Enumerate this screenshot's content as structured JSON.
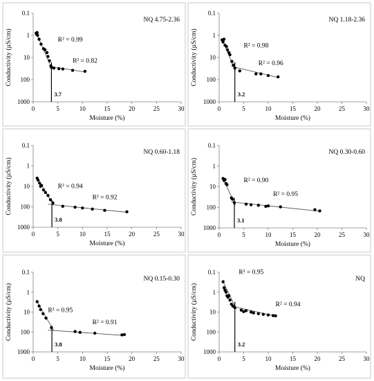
{
  "chart_data": [
    {
      "type": "scatter",
      "corner_label": "NQ 4.75-2.36",
      "xlabel": "Moisture (%)",
      "ylabel": "Conductivity (µS/cm)",
      "xlim": [
        0,
        30
      ],
      "xticks": [
        "0",
        "5",
        "10",
        "15",
        "20",
        "25",
        "30"
      ],
      "ylim": [
        0.1,
        1000
      ],
      "yscale": "log-reversed",
      "yticks": [
        "0.1",
        "1",
        "10",
        "100",
        "1000"
      ],
      "series": [
        {
          "points": [
            [
              0.6,
              0.8
            ],
            [
              0.7,
              0.9
            ],
            [
              0.8,
              0.75
            ],
            [
              0.9,
              1.0
            ],
            [
              1.2,
              1.5
            ],
            [
              1.6,
              2.5
            ],
            [
              2.1,
              4.0
            ],
            [
              2.4,
              4.5
            ],
            [
              2.8,
              6.0
            ],
            [
              3.0,
              9.0
            ],
            [
              3.3,
              14.0
            ],
            [
              3.6,
              24.0
            ],
            [
              3.7,
              28.0
            ],
            [
              4.2,
              30.0
            ],
            [
              5.2,
              32.0
            ],
            [
              6.0,
              33.0
            ],
            [
              8.0,
              38.0
            ],
            [
              10.5,
              42.0
            ]
          ],
          "fit_lines": [
            {
              "x": [
                0.6,
                3.8
              ],
              "y": [
                0.75,
                32.0
              ]
            },
            {
              "x": [
                3.2,
                10.5
              ],
              "y": [
                25.0,
                45.0
              ]
            }
          ]
        }
      ],
      "annotations": {
        "r2_first": "R² = 0.99",
        "r2_second": "R² = 0.82",
        "breakpoint": "3.7"
      },
      "breakpoint_x": 3.7,
      "r2_first_at": [
        5.0,
        1.9
      ],
      "r2_second_at": [
        8.0,
        17.0
      ],
      "grid": false
    },
    {
      "type": "scatter",
      "corner_label": "NQ 1.18-2.36",
      "xlabel": "Moisture (%)",
      "ylabel": "Conductivity (µS/cm)",
      "xlim": [
        0,
        30
      ],
      "xticks": [
        "0",
        "5",
        "10",
        "15",
        "20",
        "25",
        "30"
      ],
      "ylim": [
        0.1,
        1000
      ],
      "yscale": "log-reversed",
      "yticks": [
        "0.1",
        "1",
        "10",
        "100",
        "1000"
      ],
      "series": [
        {
          "points": [
            [
              0.6,
              1.6
            ],
            [
              0.8,
              2.0
            ],
            [
              1.0,
              1.5
            ],
            [
              1.2,
              2.8
            ],
            [
              1.5,
              3.2
            ],
            [
              1.7,
              4.5
            ],
            [
              2.0,
              6.0
            ],
            [
              2.2,
              7.5
            ],
            [
              2.6,
              15.0
            ],
            [
              2.9,
              22.0
            ],
            [
              3.2,
              30.0
            ],
            [
              4.2,
              40.0
            ],
            [
              7.5,
              55.0
            ],
            [
              8.5,
              55.0
            ],
            [
              10.0,
              65.0
            ],
            [
              12.0,
              75.0
            ]
          ],
          "fit_lines": [
            {
              "x": [
                0.6,
                3.3
              ],
              "y": [
                1.5,
                40.0
              ]
            },
            {
              "x": [
                2.5,
                12.0
              ],
              "y": [
                25.0,
                80.0
              ]
            }
          ]
        }
      ],
      "annotations": {
        "r2_first": "R² = 0.98",
        "r2_second": "R² = 0.96",
        "breakpoint": "3.2"
      },
      "breakpoint_x": 3.2,
      "r2_first_at": [
        5.0,
        3.5
      ],
      "r2_second_at": [
        8.0,
        22.0
      ],
      "grid": false
    },
    {
      "type": "scatter",
      "corner_label": "NQ 0.60-1.18",
      "xlabel": "Moisture (%)",
      "ylabel": "Conductivity (µS/cm)",
      "xlim": [
        0,
        30
      ],
      "xticks": [
        "0",
        "5",
        "10",
        "15",
        "20",
        "25",
        "30"
      ],
      "ylim": [
        0.1,
        1000
      ],
      "yscale": "log-reversed",
      "yticks": [
        "0.1",
        "1",
        "10",
        "100",
        "1000"
      ],
      "series": [
        {
          "points": [
            [
              0.8,
              4.0
            ],
            [
              1.0,
              5.0
            ],
            [
              1.3,
              7.0
            ],
            [
              1.5,
              10.0
            ],
            [
              1.7,
              9.0
            ],
            [
              2.1,
              15.0
            ],
            [
              2.5,
              20.0
            ],
            [
              3.0,
              28.0
            ],
            [
              3.5,
              45.0
            ],
            [
              4.0,
              65.0
            ],
            [
              6.0,
              95.0
            ],
            [
              8.5,
              105.0
            ],
            [
              10.0,
              115.0
            ],
            [
              12.0,
              130.0
            ],
            [
              14.5,
              150.0
            ],
            [
              19.0,
              175.0
            ]
          ],
          "fit_lines": [
            {
              "x": [
                0.8,
                4.2
              ],
              "y": [
                4.0,
                85.0
              ]
            },
            {
              "x": [
                3.0,
                19.0
              ],
              "y": [
                75.0,
                185.0
              ]
            }
          ]
        }
      ],
      "annotations": {
        "r2_first": "R² = 0.94",
        "r2_second": "R² = 0.92",
        "breakpoint": "3.8"
      },
      "breakpoint_x": 3.8,
      "r2_first_at": [
        5.0,
        12.0
      ],
      "r2_second_at": [
        12.0,
        42.0
      ],
      "grid": false
    },
    {
      "type": "scatter",
      "corner_label": "NQ 0.30-0.60",
      "xlabel": "Moisture (%)",
      "ylabel": "Conductivity (µS/cm)",
      "xlim": [
        0,
        30
      ],
      "xticks": [
        "0",
        "5",
        "10",
        "15",
        "20",
        "25",
        "30"
      ],
      "ylim": [
        0.1,
        1000
      ],
      "yscale": "log-reversed",
      "yticks": [
        "0.1",
        "1",
        "10",
        "100",
        "1000"
      ],
      "series": [
        {
          "points": [
            [
              0.8,
              4.0
            ],
            [
              1.0,
              5.0
            ],
            [
              1.2,
              4.5
            ],
            [
              1.4,
              7.0
            ],
            [
              1.6,
              8.0
            ],
            [
              2.5,
              35.0
            ],
            [
              2.7,
              40.0
            ],
            [
              3.1,
              60.0
            ],
            [
              5.5,
              70.0
            ],
            [
              6.5,
              75.0
            ],
            [
              8.0,
              80.0
            ],
            [
              9.5,
              90.0
            ],
            [
              10.0,
              85.0
            ],
            [
              12.5,
              95.0
            ],
            [
              19.5,
              130.0
            ],
            [
              20.5,
              150.0
            ]
          ],
          "fit_lines": [
            {
              "x": [
                0.8,
                3.3
              ],
              "y": [
                4.0,
                80.0
              ]
            },
            {
              "x": [
                2.5,
                20.5
              ],
              "y": [
                55.0,
                155.0
              ]
            }
          ]
        }
      ],
      "annotations": {
        "r2_first": "R² = 0.90",
        "r2_second": "R² = 0.95",
        "breakpoint": "3.1"
      },
      "breakpoint_x": 3.1,
      "r2_first_at": [
        5.0,
        6.0
      ],
      "r2_second_at": [
        11.0,
        28.0
      ],
      "grid": false
    },
    {
      "type": "scatter",
      "corner_label": "NQ 0.15-0.30",
      "xlabel": "Moisture (%)",
      "ylabel": "Conductivity (µS/cm)",
      "xlim": [
        0,
        30
      ],
      "xticks": [
        "0",
        "5",
        "10",
        "15",
        "20",
        "25",
        "30"
      ],
      "ylim": [
        0.1,
        1000
      ],
      "yscale": "log-reversed",
      "yticks": [
        "0.1",
        "1",
        "10",
        "100",
        "1000"
      ],
      "series": [
        {
          "points": [
            [
              0.8,
              3.0
            ],
            [
              1.2,
              5.0
            ],
            [
              1.5,
              7.5
            ],
            [
              2.0,
              12.0
            ],
            [
              2.6,
              20.0
            ],
            [
              3.7,
              60.0
            ],
            [
              8.5,
              95.0
            ],
            [
              9.5,
              105.0
            ],
            [
              12.5,
              115.0
            ],
            [
              18.0,
              140.0
            ],
            [
              18.5,
              135.0
            ]
          ],
          "fit_lines": [
            {
              "x": [
                0.8,
                4.2
              ],
              "y": [
                3.0,
                90.0
              ]
            },
            {
              "x": [
                3.0,
                18.5
              ],
              "y": [
                80.0,
                150.0
              ]
            }
          ]
        }
      ],
      "annotations": {
        "r2_first": "R² = 0.95",
        "r2_second": "R² = 0.91",
        "breakpoint": "3.8"
      },
      "breakpoint_x": 3.8,
      "r2_first_at": [
        3.0,
        10.0
      ],
      "r2_second_at": [
        12.0,
        40.0
      ],
      "grid": false
    },
    {
      "type": "scatter",
      "corner_label": "NQ",
      "xlabel": "Moisture (%)",
      "ylabel": "Conductivity (µS/cm)",
      "xlim": [
        0,
        30
      ],
      "xticks": [
        "0",
        "5",
        "10",
        "15",
        "20",
        "25",
        "30"
      ],
      "ylim": [
        0.1,
        1000
      ],
      "yscale": "log-reversed",
      "yticks": [
        "0.1",
        "1",
        "10",
        "100",
        "1000"
      ],
      "series": [
        {
          "points": [
            [
              0.8,
              0.3
            ],
            [
              1.0,
              0.6
            ],
            [
              1.2,
              0.8
            ],
            [
              1.4,
              1.0
            ],
            [
              1.6,
              1.5
            ],
            [
              1.8,
              1.8
            ],
            [
              2.0,
              1.5
            ],
            [
              2.2,
              2.5
            ],
            [
              2.5,
              4.0
            ],
            [
              2.8,
              5.0
            ],
            [
              3.2,
              6.0
            ],
            [
              4.5,
              8.0
            ],
            [
              5.0,
              9.5
            ],
            [
              5.5,
              8.5
            ],
            [
              6.5,
              10.0
            ],
            [
              7.0,
              11.0
            ],
            [
              8.0,
              12.0
            ],
            [
              9.0,
              13.0
            ],
            [
              10.0,
              14.0
            ],
            [
              11.0,
              15.0
            ],
            [
              11.5,
              15.5
            ]
          ],
          "fit_lines": [
            {
              "x": [
                0.8,
                3.5
              ],
              "y": [
                0.3,
                7.0
              ]
            },
            {
              "x": [
                2.5,
                11.5
              ],
              "y": [
                5.0,
                16.0
              ]
            }
          ]
        }
      ],
      "annotations": {
        "r2_first": "R² = 0.95",
        "r2_second": "R² = 0.94",
        "breakpoint": "3.2"
      },
      "breakpoint_x": 3.2,
      "r2_first_at": [
        4.0,
        0.12
      ],
      "r2_second_at": [
        11.5,
        5.0
      ],
      "grid": false
    }
  ]
}
